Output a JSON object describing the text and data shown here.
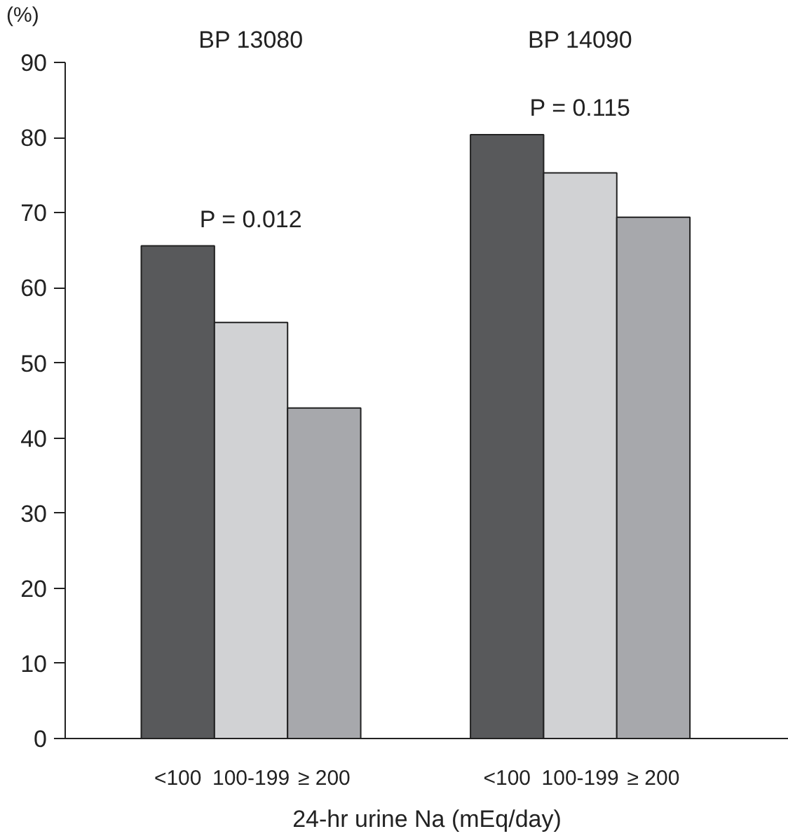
{
  "chart_data": {
    "type": "bar",
    "categories": [
      "<100",
      "100-199",
      "≥ 200",
      "<100",
      "100-199",
      "≥ 200"
    ],
    "values": [
      65.6,
      55.4,
      44.0,
      80.4,
      75.3,
      69.4
    ],
    "colors": [
      "#58595b",
      "#d1d2d4",
      "#a7a8ac",
      "#58595b",
      "#d1d2d4",
      "#a7a8ac"
    ],
    "xlabel": "24-hr urine Na (mEq/day)",
    "ylabel": "(%)",
    "ylim": [
      0,
      90
    ],
    "yticks": [
      0,
      10,
      20,
      30,
      40,
      50,
      60,
      70,
      80,
      90
    ],
    "grid": false,
    "annotations": [
      "BP 13080",
      "BP 14090",
      "P = 0.012",
      "P = 0.115"
    ]
  }
}
